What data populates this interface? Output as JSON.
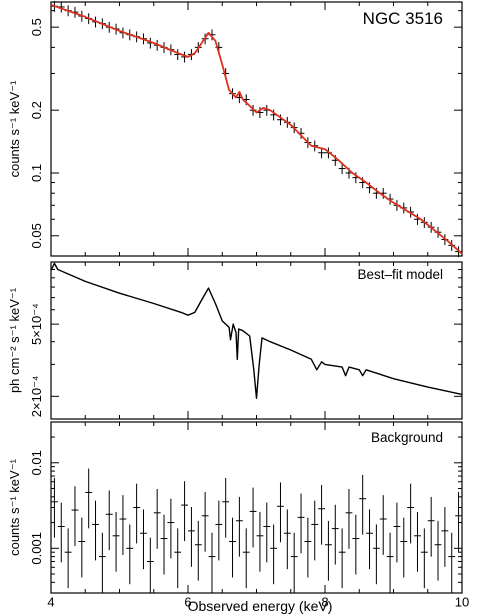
{
  "figure": {
    "xlabel": "Observed energy (keV)",
    "x_ticks": [
      "4",
      "6",
      "8",
      "10"
    ]
  },
  "chart_data": [
    {
      "type": "scatter",
      "panel_label": "NGC 3516",
      "ylabel": "counts s⁻¹ keV⁻¹",
      "xlim": [
        4,
        10
      ],
      "ylim": [
        0.04,
        0.66
      ],
      "yscale": "log",
      "y_ticks": [
        {
          "value": 0.05,
          "label": "0.05"
        },
        {
          "value": 0.1,
          "label": "0.1"
        },
        {
          "value": 0.2,
          "label": "0.2"
        },
        {
          "value": 0.5,
          "label": "0.5"
        }
      ],
      "series": [
        {
          "role": "data",
          "color": "#000000",
          "points": [
            [
              4.05,
              0.63
            ],
            [
              4.15,
              0.625
            ],
            [
              4.25,
              0.6
            ],
            [
              4.35,
              0.59
            ],
            [
              4.45,
              0.565
            ],
            [
              4.55,
              0.55
            ],
            [
              4.65,
              0.53
            ],
            [
              4.75,
              0.52
            ],
            [
              4.85,
              0.5
            ],
            [
              4.95,
              0.49
            ],
            [
              5.05,
              0.47
            ],
            [
              5.15,
              0.46
            ],
            [
              5.25,
              0.45
            ],
            [
              5.35,
              0.44
            ],
            [
              5.45,
              0.42
            ],
            [
              5.55,
              0.41
            ],
            [
              5.65,
              0.4
            ],
            [
              5.75,
              0.39
            ],
            [
              5.85,
              0.37
            ],
            [
              5.95,
              0.36
            ],
            [
              6.05,
              0.37
            ],
            [
              6.15,
              0.4
            ],
            [
              6.25,
              0.44
            ],
            [
              6.35,
              0.46
            ],
            [
              6.45,
              0.4
            ],
            [
              6.55,
              0.3
            ],
            [
              6.65,
              0.24
            ],
            [
              6.75,
              0.23
            ],
            [
              6.85,
              0.225
            ],
            [
              6.95,
              0.2
            ],
            [
              7.05,
              0.195
            ],
            [
              7.15,
              0.2
            ],
            [
              7.25,
              0.19
            ],
            [
              7.35,
              0.18
            ],
            [
              7.45,
              0.175
            ],
            [
              7.55,
              0.165
            ],
            [
              7.65,
              0.155
            ],
            [
              7.75,
              0.14
            ],
            [
              7.85,
              0.135
            ],
            [
              7.95,
              0.125
            ],
            [
              8.05,
              0.125
            ],
            [
              8.15,
              0.115
            ],
            [
              8.25,
              0.105
            ],
            [
              8.35,
              0.1
            ],
            [
              8.45,
              0.095
            ],
            [
              8.55,
              0.09
            ],
            [
              8.65,
              0.085
            ],
            [
              8.75,
              0.08
            ],
            [
              8.85,
              0.08
            ],
            [
              8.95,
              0.075
            ],
            [
              9.05,
              0.07
            ],
            [
              9.15,
              0.068
            ],
            [
              9.25,
              0.065
            ],
            [
              9.35,
              0.06
            ],
            [
              9.45,
              0.058
            ],
            [
              9.55,
              0.055
            ],
            [
              9.65,
              0.052
            ],
            [
              9.75,
              0.048
            ],
            [
              9.85,
              0.045
            ],
            [
              9.95,
              0.042
            ]
          ]
        },
        {
          "role": "model",
          "color": "#e03020",
          "points": [
            [
              4.0,
              0.64
            ],
            [
              4.5,
              0.56
            ],
            [
              5.0,
              0.48
            ],
            [
              5.5,
              0.42
            ],
            [
              5.9,
              0.37
            ],
            [
              6.0,
              0.36
            ],
            [
              6.1,
              0.375
            ],
            [
              6.2,
              0.42
            ],
            [
              6.3,
              0.47
            ],
            [
              6.4,
              0.43
            ],
            [
              6.5,
              0.33
            ],
            [
              6.6,
              0.25
            ],
            [
              6.7,
              0.23
            ],
            [
              6.75,
              0.245
            ],
            [
              6.8,
              0.225
            ],
            [
              6.9,
              0.21
            ],
            [
              7.0,
              0.195
            ],
            [
              7.1,
              0.205
            ],
            [
              7.2,
              0.2
            ],
            [
              7.5,
              0.17
            ],
            [
              7.8,
              0.135
            ],
            [
              8.0,
              0.13
            ],
            [
              8.2,
              0.115
            ],
            [
              8.4,
              0.1
            ],
            [
              8.6,
              0.09
            ],
            [
              8.8,
              0.08
            ],
            [
              9.0,
              0.072
            ],
            [
              9.4,
              0.06
            ],
            [
              9.8,
              0.047
            ],
            [
              10.0,
              0.041
            ]
          ]
        }
      ]
    },
    {
      "type": "line",
      "panel_label": "Best–fit model",
      "ylabel": "ph cm⁻² s⁻¹ keV⁻¹",
      "xlim": [
        4,
        10
      ],
      "ylim": [
        0.00015,
        0.0011
      ],
      "yscale": "log",
      "y_ticks": [
        {
          "value": 0.0002,
          "label": "2×10⁻⁴"
        },
        {
          "value": 0.0005,
          "label": "5×10⁻⁴"
        }
      ],
      "series": [
        {
          "role": "model",
          "color": "#000000",
          "points": [
            [
              4.0,
              0.00099
            ],
            [
              4.05,
              0.00108
            ],
            [
              4.1,
              0.001
            ],
            [
              4.5,
              0.00086
            ],
            [
              5.0,
              0.00074
            ],
            [
              5.5,
              0.00065
            ],
            [
              5.9,
              0.00058
            ],
            [
              6.0,
              0.00056
            ],
            [
              6.1,
              0.00058
            ],
            [
              6.2,
              0.00068
            ],
            [
              6.3,
              0.00079
            ],
            [
              6.4,
              0.00065
            ],
            [
              6.5,
              0.00052
            ],
            [
              6.6,
              0.00048
            ],
            [
              6.62,
              0.00041
            ],
            [
              6.66,
              0.0005
            ],
            [
              6.7,
              0.00045
            ],
            [
              6.72,
              0.00032
            ],
            [
              6.74,
              0.00047
            ],
            [
              6.8,
              0.00046
            ],
            [
              6.9,
              0.00043
            ],
            [
              6.96,
              0.00028
            ],
            [
              7.0,
              0.000195
            ],
            [
              7.04,
              0.0003
            ],
            [
              7.08,
              0.00042
            ],
            [
              7.2,
              0.0004
            ],
            [
              7.5,
              0.00036
            ],
            [
              7.8,
              0.00032
            ],
            [
              7.88,
              0.00028
            ],
            [
              7.95,
              0.00031
            ],
            [
              8.0,
              0.0003
            ],
            [
              8.25,
              0.00029
            ],
            [
              8.3,
              0.00026
            ],
            [
              8.35,
              0.00029
            ],
            [
              8.5,
              0.00028
            ],
            [
              8.55,
              0.00026
            ],
            [
              8.6,
              0.00028
            ],
            [
              8.8,
              0.000265
            ],
            [
              9.0,
              0.00025
            ],
            [
              9.5,
              0.000225
            ],
            [
              10.0,
              0.000205
            ]
          ]
        }
      ]
    },
    {
      "type": "scatter",
      "panel_label": "Background",
      "ylabel": "counts s⁻¹ keV⁻¹",
      "xlim": [
        4,
        10
      ],
      "ylim": [
        0.0003,
        0.03
      ],
      "yscale": "log",
      "y_ticks": [
        {
          "value": 0.001,
          "label": "0.001"
        },
        {
          "value": 0.01,
          "label": "0.01"
        }
      ],
      "series": [
        {
          "role": "data",
          "color": "#000000",
          "points": [
            [
              4.05,
              0.0035
            ],
            [
              4.15,
              0.0018
            ],
            [
              4.25,
              0.0009
            ],
            [
              4.35,
              0.0028
            ],
            [
              4.45,
              0.0012
            ],
            [
              4.55,
              0.0045
            ],
            [
              4.65,
              0.0019
            ],
            [
              4.75,
              0.0008
            ],
            [
              4.85,
              0.0025
            ],
            [
              4.95,
              0.0014
            ],
            [
              5.05,
              0.0022
            ],
            [
              5.15,
              0.001
            ],
            [
              5.25,
              0.003
            ],
            [
              5.35,
              0.0015
            ],
            [
              5.45,
              0.0007
            ],
            [
              5.55,
              0.0026
            ],
            [
              5.65,
              0.0013
            ],
            [
              5.75,
              0.002
            ],
            [
              5.85,
              0.0009
            ],
            [
              5.95,
              0.0032
            ],
            [
              6.05,
              0.0016
            ],
            [
              6.15,
              0.0011
            ],
            [
              6.25,
              0.0024
            ],
            [
              6.35,
              0.0008
            ],
            [
              6.45,
              0.0019
            ],
            [
              6.55,
              0.0035
            ],
            [
              6.65,
              0.0012
            ],
            [
              6.75,
              0.0021
            ],
            [
              6.85,
              0.0009
            ],
            [
              6.95,
              0.0027
            ],
            [
              7.05,
              0.0014
            ],
            [
              7.15,
              0.0018
            ],
            [
              7.25,
              0.001
            ],
            [
              7.35,
              0.0031
            ],
            [
              7.45,
              0.0015
            ],
            [
              7.55,
              0.0008
            ],
            [
              7.65,
              0.0023
            ],
            [
              7.75,
              0.0012
            ],
            [
              7.85,
              0.0019
            ],
            [
              7.95,
              0.0029
            ],
            [
              8.05,
              0.0011
            ],
            [
              8.15,
              0.0017
            ],
            [
              8.25,
              0.0009
            ],
            [
              8.35,
              0.0026
            ],
            [
              8.45,
              0.0013
            ],
            [
              8.55,
              0.0038
            ],
            [
              8.65,
              0.0015
            ],
            [
              8.75,
              0.001
            ],
            [
              8.85,
              0.0022
            ],
            [
              8.95,
              0.0008
            ],
            [
              9.05,
              0.0018
            ],
            [
              9.15,
              0.0012
            ],
            [
              9.25,
              0.003
            ],
            [
              9.35,
              0.0014
            ],
            [
              9.45,
              0.0009
            ],
            [
              9.55,
              0.0021
            ],
            [
              9.65,
              0.0011
            ],
            [
              9.75,
              0.0016
            ],
            [
              9.85,
              0.0008
            ],
            [
              9.95,
              0.0024
            ]
          ]
        }
      ]
    }
  ]
}
